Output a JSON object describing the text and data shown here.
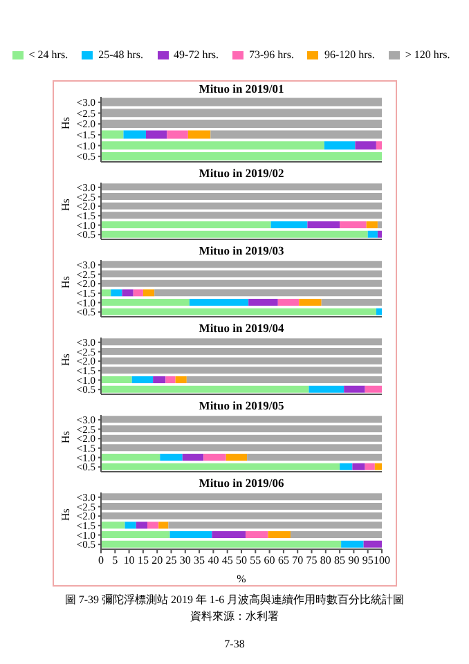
{
  "chart_data": [
    {
      "type": "bar",
      "orientation": "horizontal",
      "stacked": true,
      "title": "Mituo in 2019/01",
      "ylabel": "Hs",
      "legend": "top",
      "tick_labels": "y",
      "categories": [
        "<3.0",
        "<2.5",
        "<2.0",
        "<1.5",
        "<1.0",
        "<0.5"
      ],
      "xlim": [
        0,
        100
      ],
      "xticks": [
        0,
        5,
        10,
        15,
        20,
        25,
        30,
        35,
        40,
        45,
        50,
        55,
        60,
        65,
        70,
        75,
        80,
        85,
        90,
        95,
        100
      ],
      "series": [
        {
          "name": "< 24 hrs.",
          "color": "#90ee90",
          "values": [
            0,
            0,
            0,
            8,
            79.5,
            100
          ]
        },
        {
          "name": "25-48 hrs.",
          "color": "#00bfff",
          "values": [
            0,
            0,
            0,
            8,
            11,
            0
          ]
        },
        {
          "name": "49-72 hrs.",
          "color": "#9932cc",
          "values": [
            0,
            0,
            0,
            7.5,
            7.5,
            0
          ]
        },
        {
          "name": "73-96 hrs.",
          "color": "#ff69b4",
          "values": [
            0,
            0,
            0,
            7.5,
            2,
            0
          ]
        },
        {
          "name": "96-120 hrs.",
          "color": "#ffa500",
          "values": [
            0,
            0,
            0,
            8,
            0,
            0
          ]
        },
        {
          "name": "> 120 hrs.",
          "color": "#a9a9a9",
          "values": [
            100,
            100,
            100,
            61,
            0,
            0
          ]
        }
      ]
    },
    {
      "type": "bar",
      "orientation": "horizontal",
      "stacked": true,
      "title": "Mituo in 2019/02",
      "ylabel": "Hs",
      "tick_labels": "y",
      "categories": [
        "<3.0",
        "<2.5",
        "<2.0",
        "<1.5",
        "<1.0",
        "<0.5"
      ],
      "xlim": [
        0,
        100
      ],
      "xticks": [
        0,
        5,
        10,
        15,
        20,
        25,
        30,
        35,
        40,
        45,
        50,
        55,
        60,
        65,
        70,
        75,
        80,
        85,
        90,
        95,
        100
      ],
      "series": [
        {
          "color": "#90ee90",
          "values": [
            0,
            0,
            0,
            0,
            60.5,
            95
          ]
        },
        {
          "color": "#00bfff",
          "values": [
            0,
            0,
            0,
            0,
            13,
            3.5
          ]
        },
        {
          "color": "#9932cc",
          "values": [
            0,
            0,
            0,
            0,
            11.5,
            1.5
          ]
        },
        {
          "color": "#ff69b4",
          "values": [
            0,
            0,
            0,
            0,
            9.5,
            0
          ]
        },
        {
          "color": "#ffa500",
          "values": [
            0,
            0,
            0,
            0,
            4,
            0
          ]
        },
        {
          "color": "#a9a9a9",
          "values": [
            100,
            100,
            100,
            100,
            1.5,
            0
          ]
        }
      ]
    },
    {
      "type": "bar",
      "orientation": "horizontal",
      "stacked": true,
      "title": "Mituo in 2019/03",
      "ylabel": "Hs",
      "tick_labels": "y",
      "categories": [
        "<3.0",
        "<2.5",
        "<2.0",
        "<1.5",
        "<1.0",
        "<0.5"
      ],
      "xlim": [
        0,
        100
      ],
      "xticks": [
        0,
        5,
        10,
        15,
        20,
        25,
        30,
        35,
        40,
        45,
        50,
        55,
        60,
        65,
        70,
        75,
        80,
        85,
        90,
        95,
        100
      ],
      "series": [
        {
          "color": "#90ee90",
          "values": [
            0,
            0,
            0,
            3.5,
            31.5,
            98
          ]
        },
        {
          "color": "#00bfff",
          "values": [
            0,
            0,
            0,
            4,
            21,
            2
          ]
        },
        {
          "color": "#9932cc",
          "values": [
            0,
            0,
            0,
            4,
            10.5,
            0
          ]
        },
        {
          "color": "#ff69b4",
          "values": [
            0,
            0,
            0,
            3.5,
            7.5,
            0
          ]
        },
        {
          "color": "#ffa500",
          "values": [
            0,
            0,
            0,
            4,
            8,
            0
          ]
        },
        {
          "color": "#a9a9a9",
          "values": [
            100,
            100,
            100,
            81,
            21.5,
            0
          ]
        }
      ]
    },
    {
      "type": "bar",
      "orientation": "horizontal",
      "stacked": true,
      "title": "Mituo in 2019/04",
      "ylabel": "Hs",
      "tick_labels": "y",
      "categories": [
        "<3.0",
        "<2.5",
        "<2.0",
        "<1.5",
        "<1.0",
        "<0.5"
      ],
      "xlim": [
        0,
        100
      ],
      "xticks": [
        0,
        5,
        10,
        15,
        20,
        25,
        30,
        35,
        40,
        45,
        50,
        55,
        60,
        65,
        70,
        75,
        80,
        85,
        90,
        95,
        100
      ],
      "series": [
        {
          "color": "#90ee90",
          "values": [
            0,
            0,
            0,
            0,
            11,
            74
          ]
        },
        {
          "color": "#00bfff",
          "values": [
            0,
            0,
            0,
            0,
            7.5,
            12.5
          ]
        },
        {
          "color": "#9932cc",
          "values": [
            0,
            0,
            0,
            0,
            4.5,
            7.5
          ]
        },
        {
          "color": "#ff69b4",
          "values": [
            0,
            0,
            0,
            0,
            3.5,
            6
          ]
        },
        {
          "color": "#ffa500",
          "values": [
            0,
            0,
            0,
            0,
            4,
            0
          ]
        },
        {
          "color": "#a9a9a9",
          "values": [
            100,
            100,
            100,
            100,
            69.5,
            0
          ]
        }
      ]
    },
    {
      "type": "bar",
      "orientation": "horizontal",
      "stacked": true,
      "title": "Mituo in 2019/05",
      "ylabel": "Hs",
      "tick_labels": "y",
      "categories": [
        "<3.0",
        "<2.5",
        "<2.0",
        "<1.5",
        "<1.0",
        "<0.5"
      ],
      "xlim": [
        0,
        100
      ],
      "xticks": [
        0,
        5,
        10,
        15,
        20,
        25,
        30,
        35,
        40,
        45,
        50,
        55,
        60,
        65,
        70,
        75,
        80,
        85,
        90,
        95,
        100
      ],
      "series": [
        {
          "color": "#90ee90",
          "values": [
            0,
            0,
            0,
            0,
            21,
            85
          ]
        },
        {
          "color": "#00bfff",
          "values": [
            0,
            0,
            0,
            0,
            8,
            4.5
          ]
        },
        {
          "color": "#9932cc",
          "values": [
            0,
            0,
            0,
            0,
            7.5,
            4.5
          ]
        },
        {
          "color": "#ff69b4",
          "values": [
            0,
            0,
            0,
            0,
            8,
            3.5
          ]
        },
        {
          "color": "#ffa500",
          "values": [
            0,
            0,
            0,
            0,
            7.5,
            2.5
          ]
        },
        {
          "color": "#a9a9a9",
          "values": [
            100,
            100,
            100,
            100,
            48,
            0
          ]
        }
      ]
    },
    {
      "type": "bar",
      "orientation": "horizontal",
      "stacked": true,
      "title": "Mituo in 2019/06",
      "ylabel": "Hs",
      "xlabel": "%",
      "categories": [
        "<3.0",
        "<2.5",
        "<2.0",
        "<1.5",
        "<1.0",
        "<0.5"
      ],
      "xlim": [
        0,
        100
      ],
      "xticks": [
        0,
        5,
        10,
        15,
        20,
        25,
        30,
        35,
        40,
        45,
        50,
        55,
        60,
        65,
        70,
        75,
        80,
        85,
        90,
        95,
        100
      ],
      "annotations": [
        "圖 7-39 彌陀浮標測站 2019 年 1-6 月波高與連續作用時數百分比統計圖",
        "資料來源：水利署",
        "7-38"
      ],
      "series": [
        {
          "color": "#90ee90",
          "values": [
            0,
            0,
            0,
            8.5,
            24.5,
            85.5
          ]
        },
        {
          "color": "#00bfff",
          "values": [
            0,
            0,
            0,
            4,
            15,
            8
          ]
        },
        {
          "color": "#9932cc",
          "values": [
            0,
            0,
            0,
            4,
            12,
            6.5
          ]
        },
        {
          "color": "#ff69b4",
          "values": [
            0,
            0,
            0,
            4,
            8,
            0
          ]
        },
        {
          "color": "#ffa500",
          "values": [
            0,
            0,
            0,
            3.5,
            8,
            0
          ]
        },
        {
          "color": "#a9a9a9",
          "values": [
            100,
            100,
            100,
            76,
            32.5,
            0
          ]
        }
      ]
    }
  ]
}
